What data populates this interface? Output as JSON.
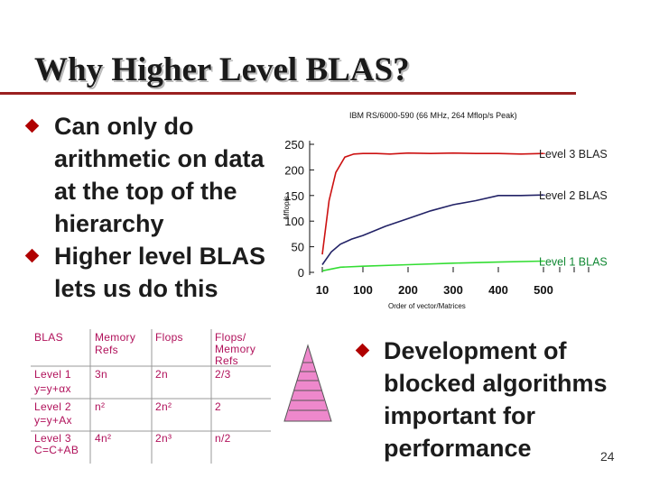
{
  "slide": {
    "title": "Why Higher Level BLAS?",
    "bullets_left": [
      {
        "lines": [
          "Can only do",
          "arithmetic on data",
          "at the top of the",
          "hierarchy"
        ]
      },
      {
        "lines": [
          "Higher level BLAS",
          "lets us do this"
        ]
      }
    ],
    "bullet_right": {
      "lines": [
        "Development of",
        "blocked algorithms",
        "important for",
        "performance"
      ]
    },
    "page_number": "24"
  },
  "chart_data": {
    "type": "line",
    "title": "IBM RS/6000-590 (66 MHz, 264 Mflop/s Peak)",
    "xlabel": "Order of vector/Matrices",
    "ylabel": "Mflop/s",
    "xlim": [
      10,
      500
    ],
    "ylim": [
      0,
      250
    ],
    "x_ticks": [
      "10",
      "100",
      "200",
      "300",
      "400",
      "500"
    ],
    "y_ticks": [
      "250",
      "200",
      "150",
      "100",
      "50",
      "0"
    ],
    "series": [
      {
        "name": "Level 3 BLAS",
        "color": "#cc1111",
        "x": [
          10,
          25,
          40,
          60,
          80,
          100,
          130,
          160,
          200,
          250,
          300,
          350,
          400,
          450,
          500
        ],
        "y": [
          35,
          140,
          195,
          225,
          231,
          232,
          232,
          231,
          233,
          232,
          233,
          232,
          232,
          231,
          232
        ]
      },
      {
        "name": "Level 2 BLAS",
        "color": "#222266",
        "x": [
          10,
          30,
          50,
          75,
          100,
          150,
          200,
          250,
          300,
          350,
          400,
          450,
          500
        ],
        "y": [
          15,
          40,
          55,
          65,
          72,
          90,
          105,
          120,
          132,
          140,
          150,
          150,
          151
        ]
      },
      {
        "name": "Level 1 BLAS",
        "color": "#33dd33",
        "x": [
          10,
          50,
          100,
          200,
          300,
          400,
          500
        ],
        "y": [
          3,
          10,
          12,
          15,
          18,
          20,
          22
        ]
      }
    ]
  },
  "table": {
    "headers": [
      [
        "BLAS"
      ],
      [
        "Memory",
        "Refs"
      ],
      [
        "Flops"
      ],
      [
        "Flops/",
        "Memory",
        "Refs"
      ]
    ],
    "rows": [
      {
        "blas": [
          "Level 1",
          "y=y+αx"
        ],
        "mem": "3n",
        "flops": "2n",
        "ratio": "2/3"
      },
      {
        "blas": [
          "Level 2",
          "y=y+Ax"
        ],
        "mem": "n²",
        "flops": "2n²",
        "ratio": "2"
      },
      {
        "blas": [
          "Level 3",
          "C=C+AB"
        ],
        "mem": "4n²",
        "flops": "2n³",
        "ratio": "n/2"
      }
    ]
  },
  "colors": {
    "title_rule": "#9a2020",
    "bullet": "#b00000",
    "pyramid": "#ee88cc",
    "table_text": "#b0105a"
  }
}
